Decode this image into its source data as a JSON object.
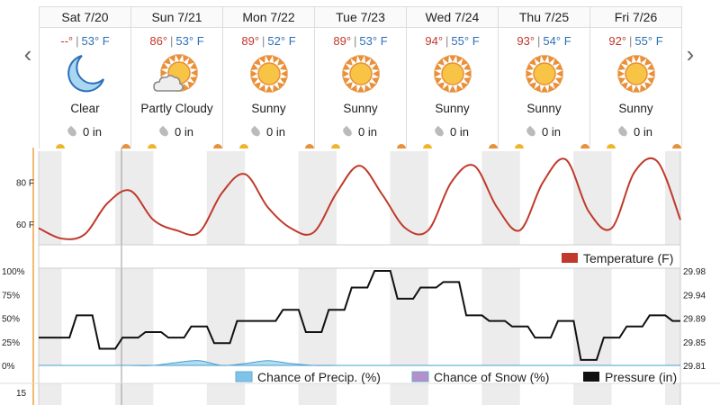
{
  "nav": {
    "prev_icon": "chevron-left-icon",
    "next_icon": "chevron-right-icon",
    "prev_glyph": "‹",
    "next_glyph": "›"
  },
  "days": [
    {
      "label": "Sat 7/20",
      "hi": "--°",
      "lo": "53° F",
      "cond": "Clear",
      "icon": "moon-icon",
      "precip": "0 in"
    },
    {
      "label": "Sun 7/21",
      "hi": "86°",
      "lo": "53° F",
      "cond": "Partly Cloudy",
      "icon": "partly-cloudy-icon",
      "precip": "0 in"
    },
    {
      "label": "Mon 7/22",
      "hi": "89°",
      "lo": "52° F",
      "cond": "Sunny",
      "icon": "sun-icon",
      "precip": "0 in"
    },
    {
      "label": "Tue 7/23",
      "hi": "89°",
      "lo": "53° F",
      "cond": "Sunny",
      "icon": "sun-icon",
      "precip": "0 in"
    },
    {
      "label": "Wed 7/24",
      "hi": "94°",
      "lo": "55° F",
      "cond": "Sunny",
      "icon": "sun-icon",
      "precip": "0 in"
    },
    {
      "label": "Thu 7/25",
      "hi": "93°",
      "lo": "54° F",
      "cond": "Sunny",
      "icon": "sun-icon",
      "precip": "0 in"
    },
    {
      "label": "Fri 7/26",
      "hi": "92°",
      "lo": "55° F",
      "cond": "Sunny",
      "icon": "sun-icon",
      "precip": "0 in"
    }
  ],
  "colors": {
    "temperature": "#c0392b",
    "precip": "#7fc4e8",
    "snow": "#b48fc9",
    "pressure": "#111111",
    "hi": "#c0392b",
    "lo": "#2c6fb7"
  },
  "chart_data": [
    {
      "type": "line",
      "x": [
        0,
        6,
        12,
        18,
        24,
        30,
        36,
        42,
        48,
        54,
        60,
        66,
        72,
        78,
        84,
        90,
        96,
        102,
        108,
        114,
        120,
        126,
        132,
        138,
        144,
        150,
        156,
        162,
        168
      ],
      "series": [
        {
          "name": "Temperature (F)",
          "values": [
            58,
            53,
            55,
            70,
            76,
            62,
            57,
            56,
            75,
            84,
            68,
            58,
            56,
            75,
            88,
            74,
            58,
            57,
            80,
            88,
            68,
            57,
            80,
            91,
            66,
            58,
            85,
            90,
            62
          ]
        }
      ],
      "ylim": [
        50,
        95
      ],
      "y_ticks": [
        "80 F",
        "60 F"
      ],
      "y_tick_values": [
        80,
        60
      ],
      "legend": [
        "Temperature (F)"
      ],
      "legend_position": "bottom-right"
    },
    {
      "type": "line",
      "x": [
        0,
        6,
        12,
        18,
        24,
        30,
        36,
        42,
        48,
        54,
        60,
        66,
        72,
        78,
        84,
        90,
        96,
        102,
        108,
        114,
        120,
        126,
        132,
        138,
        144,
        150,
        156,
        162,
        168
      ],
      "series": [
        {
          "name": "Chance of Precip. (%)",
          "values": [
            0,
            0,
            0,
            0,
            0,
            0,
            3,
            5,
            0,
            2,
            5,
            2,
            0,
            0,
            0,
            0,
            0,
            0,
            0,
            0,
            0,
            0,
            0,
            0,
            0,
            0,
            0,
            0,
            0
          ]
        },
        {
          "name": "Chance of Snow (%)",
          "values": [
            0,
            0,
            0,
            0,
            0,
            0,
            0,
            0,
            0,
            0,
            0,
            0,
            0,
            0,
            0,
            0,
            0,
            0,
            0,
            0,
            0,
            0,
            0,
            0,
            0,
            0,
            0,
            0,
            0
          ]
        },
        {
          "name": "Pressure (in)",
          "values": [
            29.86,
            29.86,
            29.9,
            29.84,
            29.86,
            29.87,
            29.86,
            29.88,
            29.85,
            29.89,
            29.89,
            29.91,
            29.87,
            29.91,
            29.95,
            29.98,
            29.93,
            29.95,
            29.96,
            29.9,
            29.89,
            29.88,
            29.86,
            29.89,
            29.82,
            29.86,
            29.88,
            29.9,
            29.89
          ]
        }
      ],
      "ylim": [
        0,
        100
      ],
      "y_ticks": [
        "100%",
        "75%",
        "50%",
        "25%",
        "0%"
      ],
      "y2_ticks": [
        "29.98",
        "29.94",
        "29.89",
        "29.85",
        "29.81"
      ],
      "y2lim": [
        29.81,
        29.98
      ],
      "legend": [
        "Chance of Precip. (%)",
        "Chance of Snow (%)",
        "Pressure (in)"
      ],
      "legend_position": "bottom-right"
    }
  ],
  "lower_axis": {
    "tick": "15"
  }
}
